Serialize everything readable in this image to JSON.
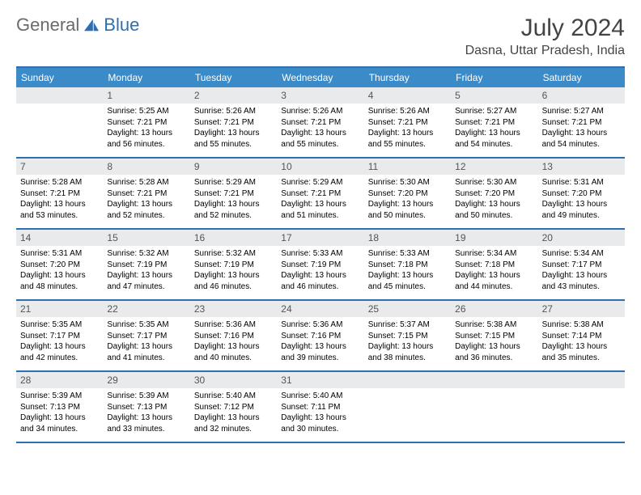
{
  "logo": {
    "text1": "General",
    "text2": "Blue"
  },
  "title": "July 2024",
  "subtitle": "Dasna, Uttar Pradesh, India",
  "colors": {
    "header_bg": "#3b8bc9",
    "header_text": "#ffffff",
    "border": "#2f6fb0",
    "daynum_bg": "#e9eaeb",
    "daynum_text": "#555555",
    "body_text": "#000000",
    "logo_gray": "#6b6b6b",
    "logo_blue": "#2f6fb0"
  },
  "day_headers": [
    "Sunday",
    "Monday",
    "Tuesday",
    "Wednesday",
    "Thursday",
    "Friday",
    "Saturday"
  ],
  "weeks": [
    [
      null,
      {
        "n": "1",
        "sr": "Sunrise: 5:25 AM",
        "ss": "Sunset: 7:21 PM",
        "dl": "Daylight: 13 hours and 56 minutes."
      },
      {
        "n": "2",
        "sr": "Sunrise: 5:26 AM",
        "ss": "Sunset: 7:21 PM",
        "dl": "Daylight: 13 hours and 55 minutes."
      },
      {
        "n": "3",
        "sr": "Sunrise: 5:26 AM",
        "ss": "Sunset: 7:21 PM",
        "dl": "Daylight: 13 hours and 55 minutes."
      },
      {
        "n": "4",
        "sr": "Sunrise: 5:26 AM",
        "ss": "Sunset: 7:21 PM",
        "dl": "Daylight: 13 hours and 55 minutes."
      },
      {
        "n": "5",
        "sr": "Sunrise: 5:27 AM",
        "ss": "Sunset: 7:21 PM",
        "dl": "Daylight: 13 hours and 54 minutes."
      },
      {
        "n": "6",
        "sr": "Sunrise: 5:27 AM",
        "ss": "Sunset: 7:21 PM",
        "dl": "Daylight: 13 hours and 54 minutes."
      }
    ],
    [
      {
        "n": "7",
        "sr": "Sunrise: 5:28 AM",
        "ss": "Sunset: 7:21 PM",
        "dl": "Daylight: 13 hours and 53 minutes."
      },
      {
        "n": "8",
        "sr": "Sunrise: 5:28 AM",
        "ss": "Sunset: 7:21 PM",
        "dl": "Daylight: 13 hours and 52 minutes."
      },
      {
        "n": "9",
        "sr": "Sunrise: 5:29 AM",
        "ss": "Sunset: 7:21 PM",
        "dl": "Daylight: 13 hours and 52 minutes."
      },
      {
        "n": "10",
        "sr": "Sunrise: 5:29 AM",
        "ss": "Sunset: 7:21 PM",
        "dl": "Daylight: 13 hours and 51 minutes."
      },
      {
        "n": "11",
        "sr": "Sunrise: 5:30 AM",
        "ss": "Sunset: 7:20 PM",
        "dl": "Daylight: 13 hours and 50 minutes."
      },
      {
        "n": "12",
        "sr": "Sunrise: 5:30 AM",
        "ss": "Sunset: 7:20 PM",
        "dl": "Daylight: 13 hours and 50 minutes."
      },
      {
        "n": "13",
        "sr": "Sunrise: 5:31 AM",
        "ss": "Sunset: 7:20 PM",
        "dl": "Daylight: 13 hours and 49 minutes."
      }
    ],
    [
      {
        "n": "14",
        "sr": "Sunrise: 5:31 AM",
        "ss": "Sunset: 7:20 PM",
        "dl": "Daylight: 13 hours and 48 minutes."
      },
      {
        "n": "15",
        "sr": "Sunrise: 5:32 AM",
        "ss": "Sunset: 7:19 PM",
        "dl": "Daylight: 13 hours and 47 minutes."
      },
      {
        "n": "16",
        "sr": "Sunrise: 5:32 AM",
        "ss": "Sunset: 7:19 PM",
        "dl": "Daylight: 13 hours and 46 minutes."
      },
      {
        "n": "17",
        "sr": "Sunrise: 5:33 AM",
        "ss": "Sunset: 7:19 PM",
        "dl": "Daylight: 13 hours and 46 minutes."
      },
      {
        "n": "18",
        "sr": "Sunrise: 5:33 AM",
        "ss": "Sunset: 7:18 PM",
        "dl": "Daylight: 13 hours and 45 minutes."
      },
      {
        "n": "19",
        "sr": "Sunrise: 5:34 AM",
        "ss": "Sunset: 7:18 PM",
        "dl": "Daylight: 13 hours and 44 minutes."
      },
      {
        "n": "20",
        "sr": "Sunrise: 5:34 AM",
        "ss": "Sunset: 7:17 PM",
        "dl": "Daylight: 13 hours and 43 minutes."
      }
    ],
    [
      {
        "n": "21",
        "sr": "Sunrise: 5:35 AM",
        "ss": "Sunset: 7:17 PM",
        "dl": "Daylight: 13 hours and 42 minutes."
      },
      {
        "n": "22",
        "sr": "Sunrise: 5:35 AM",
        "ss": "Sunset: 7:17 PM",
        "dl": "Daylight: 13 hours and 41 minutes."
      },
      {
        "n": "23",
        "sr": "Sunrise: 5:36 AM",
        "ss": "Sunset: 7:16 PM",
        "dl": "Daylight: 13 hours and 40 minutes."
      },
      {
        "n": "24",
        "sr": "Sunrise: 5:36 AM",
        "ss": "Sunset: 7:16 PM",
        "dl": "Daylight: 13 hours and 39 minutes."
      },
      {
        "n": "25",
        "sr": "Sunrise: 5:37 AM",
        "ss": "Sunset: 7:15 PM",
        "dl": "Daylight: 13 hours and 38 minutes."
      },
      {
        "n": "26",
        "sr": "Sunrise: 5:38 AM",
        "ss": "Sunset: 7:15 PM",
        "dl": "Daylight: 13 hours and 36 minutes."
      },
      {
        "n": "27",
        "sr": "Sunrise: 5:38 AM",
        "ss": "Sunset: 7:14 PM",
        "dl": "Daylight: 13 hours and 35 minutes."
      }
    ],
    [
      {
        "n": "28",
        "sr": "Sunrise: 5:39 AM",
        "ss": "Sunset: 7:13 PM",
        "dl": "Daylight: 13 hours and 34 minutes."
      },
      {
        "n": "29",
        "sr": "Sunrise: 5:39 AM",
        "ss": "Sunset: 7:13 PM",
        "dl": "Daylight: 13 hours and 33 minutes."
      },
      {
        "n": "30",
        "sr": "Sunrise: 5:40 AM",
        "ss": "Sunset: 7:12 PM",
        "dl": "Daylight: 13 hours and 32 minutes."
      },
      {
        "n": "31",
        "sr": "Sunrise: 5:40 AM",
        "ss": "Sunset: 7:11 PM",
        "dl": "Daylight: 13 hours and 30 minutes."
      },
      null,
      null,
      null
    ]
  ]
}
